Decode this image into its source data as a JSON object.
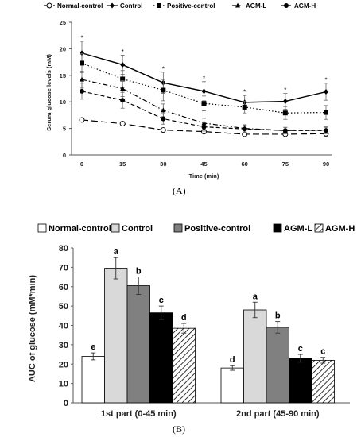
{
  "chart_data": [
    {
      "type": "line",
      "panel_label": "(A)",
      "xlabel": "Time (min)",
      "ylabel": "Serum glucose levels (mM)",
      "x": [
        0,
        15,
        30,
        45,
        60,
        75,
        90
      ],
      "ylim": [
        0,
        25
      ],
      "yticks": [
        0,
        5,
        10,
        15,
        20,
        25
      ],
      "xtick_labels": [
        "0",
        "15",
        "30",
        "45",
        "60",
        "75",
        "90"
      ],
      "ytick_labels": [
        "0",
        "5",
        "10",
        "15",
        "20",
        "25"
      ],
      "grid": false,
      "legend_position": "top",
      "star_marker": "*",
      "series": [
        {
          "name": "Normal-control",
          "values": [
            6.6,
            5.9,
            4.7,
            4.4,
            3.9,
            3.9,
            4.0
          ],
          "errors": [
            0.3,
            0.4,
            0.4,
            0.4,
            0.4,
            0.5,
            0.5
          ],
          "marker": "circle-open",
          "dash": "long",
          "stars": []
        },
        {
          "name": "Control",
          "values": [
            19.2,
            17.0,
            13.6,
            12.0,
            9.9,
            10.1,
            11.9
          ],
          "errors": [
            2.2,
            1.8,
            2.0,
            1.8,
            1.3,
            1.5,
            1.6
          ],
          "marker": "diamond",
          "dash": "solid",
          "stars": [
            0,
            1,
            2,
            3,
            4,
            5,
            6
          ]
        },
        {
          "name": "Positive-control",
          "values": [
            17.3,
            14.3,
            12.2,
            9.7,
            9.0,
            7.9,
            8.0
          ],
          "errors": [
            1.8,
            1.6,
            2.0,
            1.4,
            1.1,
            1.2,
            1.3
          ],
          "marker": "square",
          "dash": "dot",
          "stars": []
        },
        {
          "name": "AGM-L",
          "values": [
            14.2,
            12.5,
            8.4,
            6.0,
            5.0,
            4.6,
            4.7
          ],
          "errors": [
            1.6,
            1.5,
            1.2,
            0.9,
            0.7,
            0.6,
            0.6
          ],
          "marker": "triangle",
          "dash": "dashdot",
          "stars": []
        },
        {
          "name": "AGM-H",
          "values": [
            12.0,
            10.3,
            6.8,
            5.3,
            4.9,
            4.6,
            4.6
          ],
          "errors": [
            1.5,
            1.5,
            1.0,
            0.8,
            0.7,
            0.6,
            0.6
          ],
          "marker": "circle",
          "dash": "dash",
          "stars": []
        }
      ]
    },
    {
      "type": "bar",
      "panel_label": "(B)",
      "ylabel": "AUC of glucose (mM*min)",
      "categories": [
        "1st part (0-45 min)",
        "2nd part (45-90 min)"
      ],
      "ylim": [
        0,
        80
      ],
      "yticks": [
        0,
        10,
        20,
        30,
        40,
        50,
        60,
        70,
        80
      ],
      "ytick_labels": [
        "0",
        "10",
        "20",
        "30",
        "40",
        "50",
        "60",
        "70",
        "80"
      ],
      "grid": false,
      "legend_position": "top",
      "series": [
        {
          "name": "Normal-control",
          "values": [
            24,
            18
          ],
          "errors": [
            1.8,
            1.2
          ],
          "letters": [
            "e",
            "d"
          ],
          "fill": "#ffffff"
        },
        {
          "name": "Control",
          "values": [
            69.5,
            48
          ],
          "errors": [
            5.5,
            4.0
          ],
          "letters": [
            "a",
            "a"
          ],
          "fill": "#d9d9d9"
        },
        {
          "name": "Positive-control",
          "values": [
            60.5,
            39
          ],
          "errors": [
            4.5,
            3.0
          ],
          "letters": [
            "b",
            "b"
          ],
          "fill": "#808080"
        },
        {
          "name": "AGM-L",
          "values": [
            46.5,
            23
          ],
          "errors": [
            3.5,
            2.0
          ],
          "letters": [
            "c",
            "c"
          ],
          "fill": "#000000"
        },
        {
          "name": "AGM-H",
          "values": [
            38.5,
            22
          ],
          "errors": [
            2.5,
            1.5
          ],
          "letters": [
            "d",
            "c"
          ],
          "fill": "hatch"
        }
      ]
    }
  ]
}
